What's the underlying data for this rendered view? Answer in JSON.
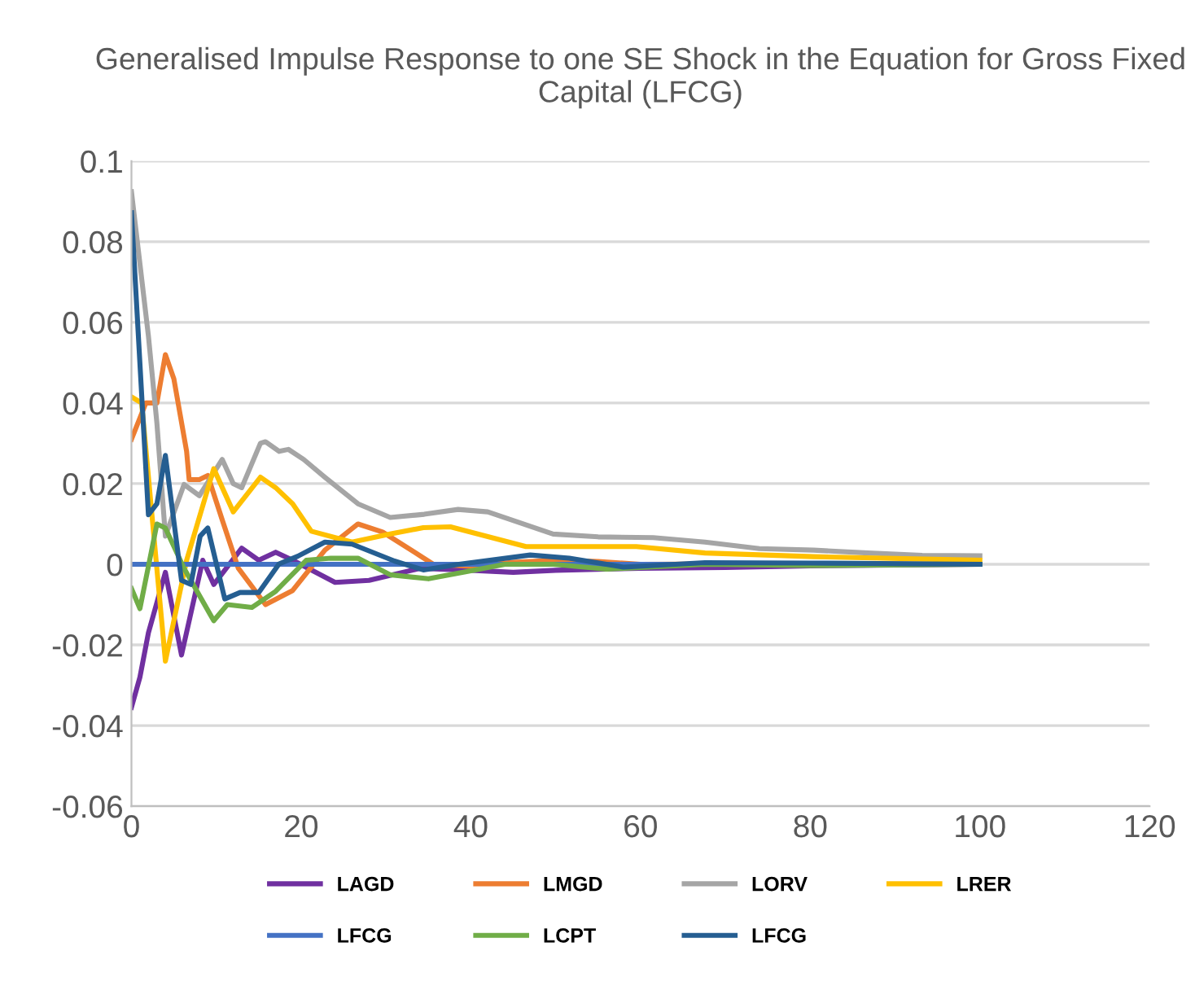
{
  "chart_data": {
    "type": "line",
    "title": "Generalised Impulse Response to one SE Shock in the Equation for Gross Fixed Capital (LFCG)",
    "xlim": [
      0,
      120
    ],
    "xticks": [
      0,
      20,
      40,
      60,
      80,
      100,
      120
    ],
    "ylim": [
      -0.06,
      0.1
    ],
    "yticks": [
      -0.06,
      -0.04,
      -0.02,
      0,
      0.02,
      0.04,
      0.06,
      0.08,
      0.1
    ],
    "grid": "y",
    "legend": "bottom",
    "marker": "none",
    "line_style": "solid",
    "series": [
      {
        "name": "LAGD",
        "color": "#7030a0",
        "x": [
          0,
          1,
          2,
          4,
          5.9,
          8.4,
          9.7,
          13,
          15,
          17,
          19,
          24,
          28,
          34,
          40,
          45,
          50,
          60,
          70,
          80,
          90,
          100
        ],
        "values": [
          -0.0355,
          -0.028,
          -0.017,
          -0.002,
          -0.0225,
          0.001,
          -0.005,
          0.004,
          0.001,
          0.003,
          0.001,
          -0.0045,
          -0.004,
          -0.001,
          -0.0015,
          -0.002,
          -0.0015,
          -0.001,
          -0.0008,
          -0.0004,
          -0.0002,
          0
        ]
      },
      {
        "name": "LMGD",
        "color": "#ed7d31",
        "x": [
          0,
          1.7,
          3,
          4,
          5,
          6.5,
          6.8,
          8,
          9,
          10.7,
          12.6,
          15.8,
          19,
          22.8,
          26.7,
          29.6,
          34.4,
          35.6,
          40,
          45,
          50,
          55,
          60,
          80,
          90,
          100
        ],
        "values": [
          0.031,
          0.04,
          0.04,
          0.052,
          0.046,
          0.028,
          0.021,
          0.021,
          0.022,
          0.011,
          -0.001,
          -0.01,
          -0.0065,
          0.0035,
          0.01,
          0.008,
          0.0016,
          0,
          -0.0005,
          0.0005,
          0.001,
          0.0007,
          0,
          0.0002,
          0.0001,
          0
        ]
      },
      {
        "name": "LORV",
        "color": "#a5a5a5",
        "x": [
          0,
          2,
          3,
          4,
          6.2,
          8,
          10.7,
          12,
          13,
          15.2,
          15.8,
          17.4,
          18.5,
          20.3,
          22.8,
          26.7,
          30.5,
          34.5,
          38.5,
          42,
          49.7,
          55,
          61.5,
          67.6,
          74,
          80.4,
          86.8,
          93.2,
          100
        ],
        "values": [
          0.0924,
          0.0566,
          0.035,
          0.007,
          0.0198,
          0.017,
          0.026,
          0.02,
          0.019,
          0.03,
          0.0304,
          0.028,
          0.0285,
          0.026,
          0.0216,
          0.015,
          0.0116,
          0.0124,
          0.0136,
          0.013,
          0.0075,
          0.0068,
          0.0066,
          0.0055,
          0.0039,
          0.0035,
          0.0028,
          0.0022,
          0.0021
        ]
      },
      {
        "name": "LRER",
        "color": "#ffc000",
        "x": [
          0,
          1.2,
          4,
          6.5,
          9.7,
          12,
          15.2,
          17,
          19,
          21.2,
          26,
          30.5,
          34.4,
          37.6,
          46.5,
          55,
          59.5,
          67.6,
          80.4,
          100
        ],
        "values": [
          0.0415,
          0.04,
          -0.024,
          0.001,
          0.0237,
          0.013,
          0.0216,
          0.019,
          0.015,
          0.0082,
          0.0055,
          0.0075,
          0.0091,
          0.0093,
          0.0044,
          0.0044,
          0.0044,
          0.0028,
          0.0019,
          0.001
        ]
      },
      {
        "name": "LFCG",
        "color": "#4472c4",
        "x": [
          0,
          100
        ],
        "values": [
          0,
          0
        ]
      },
      {
        "name": "LCPT",
        "color": "#70ad47",
        "x": [
          0,
          1,
          3,
          4,
          6.2,
          9.7,
          11.3,
          14.2,
          17,
          20.6,
          23.5,
          26.7,
          30.5,
          35,
          39.5,
          44,
          49.7,
          56,
          67.6,
          80,
          100
        ],
        "values": [
          -0.006,
          -0.011,
          0.01,
          0.009,
          -0.001,
          -0.014,
          -0.01,
          -0.0107,
          -0.0067,
          0.001,
          0.0015,
          0.0015,
          -0.0026,
          -0.0036,
          -0.0018,
          0,
          0,
          -0.0012,
          0,
          -0.0003,
          0
        ]
      },
      {
        "name": "LFCG",
        "color": "#255e91",
        "x": [
          0,
          2,
          3,
          4,
          5.9,
          7,
          8.1,
          9,
          11,
          12.8,
          15,
          17.4,
          19.6,
          22.8,
          26,
          31,
          34.4,
          38.6,
          47,
          51.6,
          58,
          67.6,
          80,
          100
        ],
        "values": [
          0.0872,
          0.0123,
          0.015,
          0.027,
          -0.004,
          -0.005,
          0.007,
          0.009,
          -0.0086,
          -0.007,
          -0.007,
          0.0001,
          0.002,
          0.0055,
          0.005,
          0.0008,
          -0.0014,
          0,
          0.0023,
          0.0015,
          -0.0007,
          0.0004,
          0.0003,
          0
        ]
      }
    ]
  }
}
